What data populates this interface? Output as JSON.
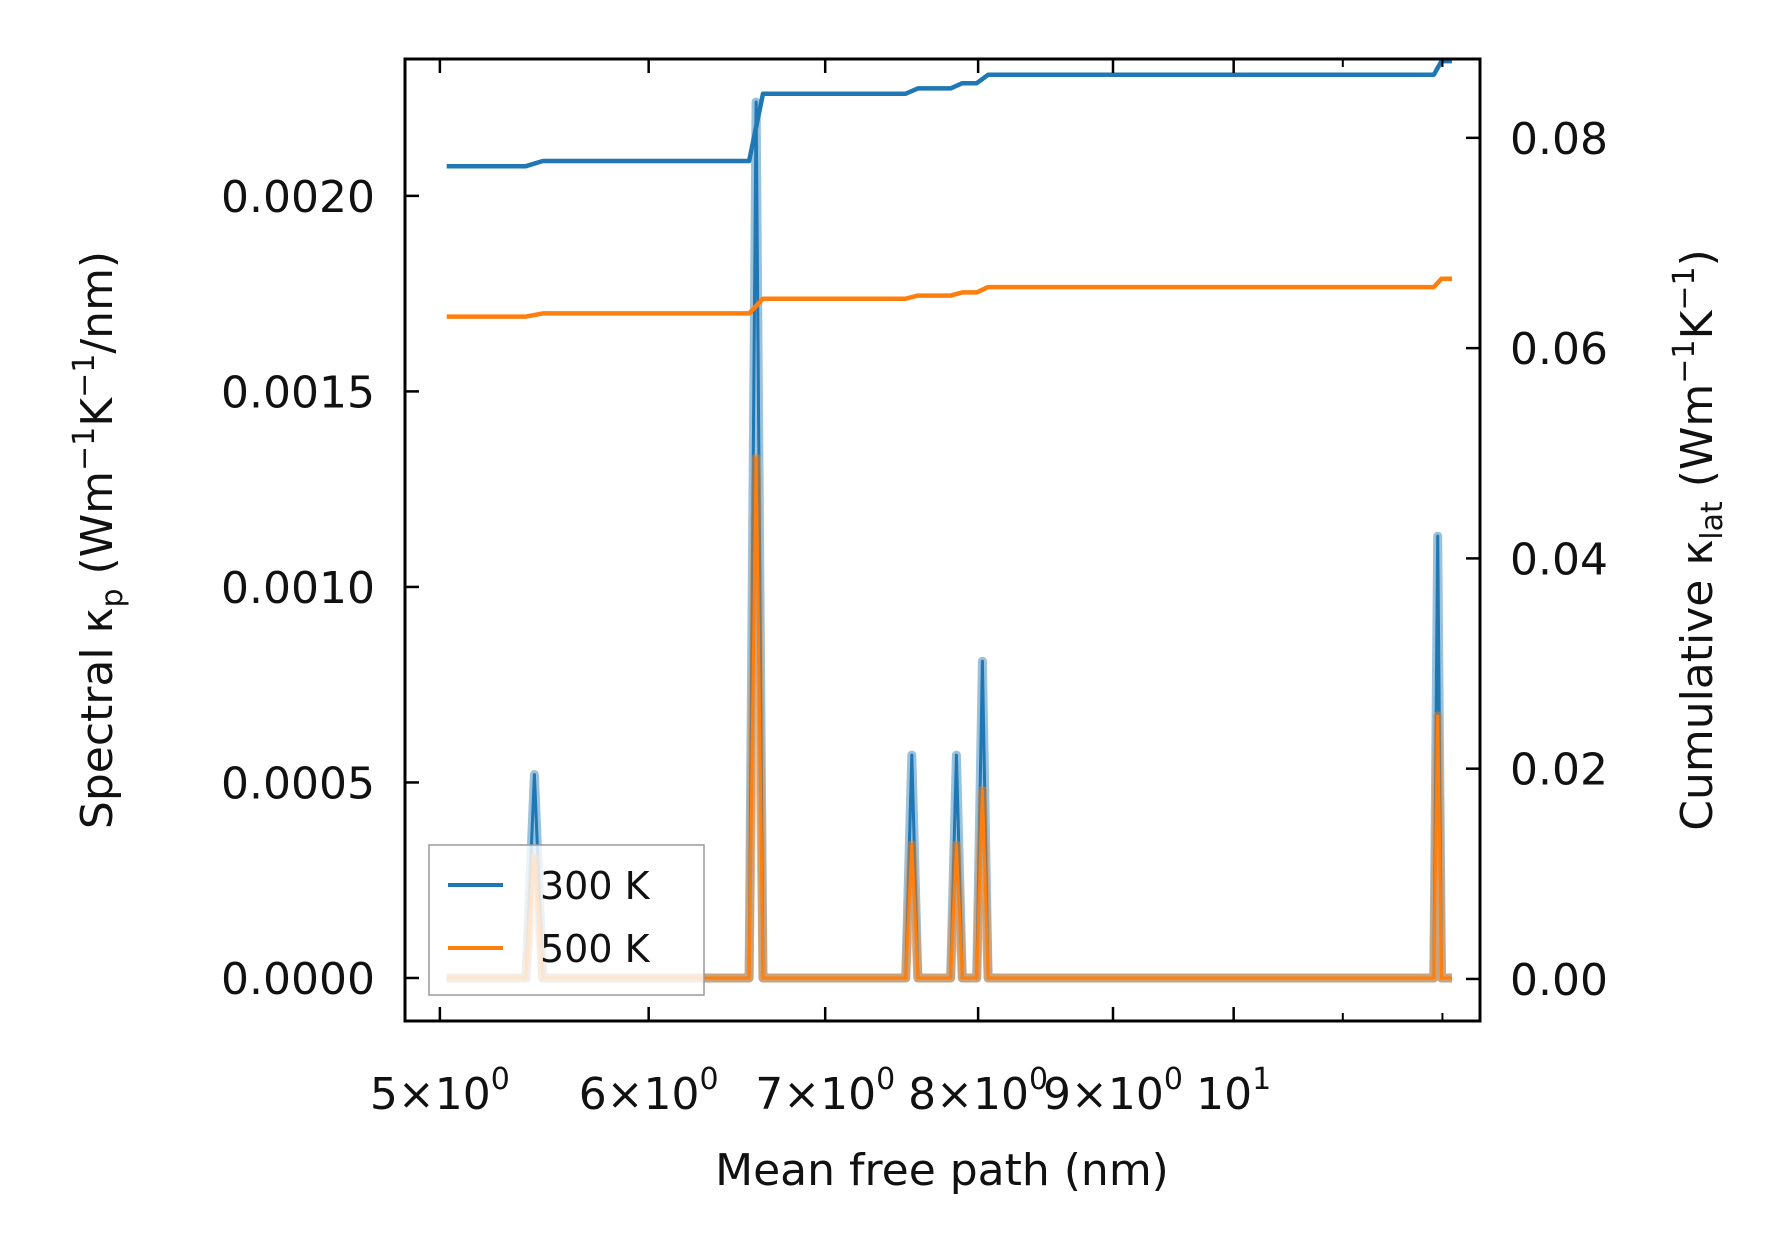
{
  "colors": {
    "series_300": "#1f77b4",
    "series_500": "#ff7f0e"
  },
  "chart_data": {
    "type": "line",
    "title": "",
    "xlabel": "Mean free path (nm)",
    "ylabel_left_parts": {
      "pre": "Spectral κ",
      "sub": "p",
      "mid": " (Wm",
      "sup1": "−1",
      "mid2": "K",
      "sup2": "−1",
      "post": "/nm)"
    },
    "ylabel_right_parts": {
      "pre": "Cumulative κ",
      "sub": "lat",
      "mid": " (Wm",
      "sup1": "−1",
      "mid2": "K",
      "sup2": "−1",
      "post": ")"
    },
    "x_scale": "log",
    "xlim": [
      4.85,
      12.4
    ],
    "ylim_left": [
      -0.00011,
      0.00235
    ],
    "ylim_right": [
      -0.004,
      0.0875
    ],
    "x_ticks": [
      {
        "value": 5,
        "base": "5×10",
        "exp": "0"
      },
      {
        "value": 6,
        "base": "6×10",
        "exp": "0"
      },
      {
        "value": 7,
        "base": "7×10",
        "exp": "0"
      },
      {
        "value": 8,
        "base": "8×10",
        "exp": "0"
      },
      {
        "value": 9,
        "base": "9×10",
        "exp": "0"
      },
      {
        "value": 10,
        "base": "10",
        "exp": "1"
      }
    ],
    "x_minor_ticks": [
      11,
      12
    ],
    "y_left_ticks": [
      "0.0000",
      "0.0005",
      "0.0010",
      "0.0015",
      "0.0020"
    ],
    "y_left_tick_values": [
      0,
      0.0005,
      0.001,
      0.0015,
      0.002
    ],
    "y_right_ticks": [
      "0.00",
      "0.02",
      "0.04",
      "0.06",
      "0.08"
    ],
    "y_right_tick_values": [
      0,
      0.02,
      0.04,
      0.06,
      0.08
    ],
    "legend": {
      "position": "lower-left",
      "entries": [
        "300 K",
        "500 K"
      ]
    },
    "x_range": [
      5.03,
      12.1
    ],
    "peaks_x": [
      5.43,
      6.59,
      7.55,
      7.85,
      8.03,
      11.95
    ],
    "peak_half_width": 0.04,
    "series": [
      {
        "name": "300 K",
        "spectral_peaks": [
          0.00052,
          0.00224,
          0.00057,
          0.00057,
          0.00081,
          0.00113
        ],
        "cumulative_start": 0.0773,
        "cumulative_steps": [
          0.0005,
          0.0064,
          0.0005,
          0.0005,
          0.0008,
          0.0013
        ]
      },
      {
        "name": "500 K",
        "spectral_peaks": [
          0.00031,
          0.00133,
          0.00034,
          0.00034,
          0.00048,
          0.00067
        ],
        "cumulative_start": 0.063,
        "cumulative_steps": [
          0.0003,
          0.0014,
          0.0003,
          0.0003,
          0.0005,
          0.0008
        ]
      }
    ]
  }
}
